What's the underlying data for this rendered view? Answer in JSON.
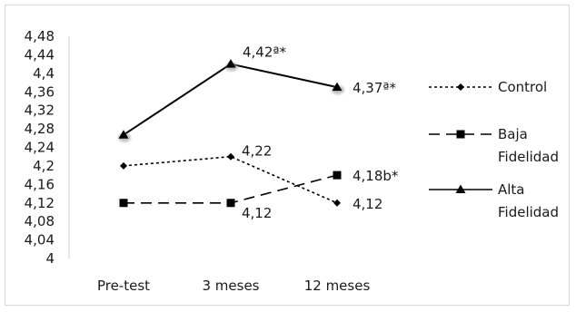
{
  "chart_data": {
    "type": "line",
    "title": "",
    "xlabel": "",
    "ylabel": "",
    "categories": [
      "Pre-test",
      "3 meses",
      "12 meses"
    ],
    "ylim": [
      4,
      4.48
    ],
    "yticks": [
      "4,48",
      "4,44",
      "4,4",
      "4,36",
      "4,32",
      "4,28",
      "4,24",
      "4,2",
      "4,16",
      "4,12",
      "4,08",
      "4,04",
      "4"
    ],
    "grid": false,
    "legend_position": "right",
    "series": [
      {
        "name": "Control",
        "line_style": "dotted",
        "marker": "diamond",
        "values": [
          4.2,
          4.22,
          4.12
        ],
        "labels": [
          "",
          "4,22",
          "4,12"
        ]
      },
      {
        "name": "Baja Fidelidad",
        "line_style": "dashed",
        "marker": "square",
        "values": [
          4.12,
          4.12,
          4.18
        ],
        "labels": [
          "",
          "4,12",
          "4,18b*"
        ]
      },
      {
        "name": "Alta Fidelidad",
        "line_style": "solid",
        "marker": "triangle",
        "values": [
          4.267,
          4.42,
          4.37
        ],
        "labels": [
          "",
          "4,42ª*",
          "4,37ª*"
        ]
      }
    ]
  }
}
